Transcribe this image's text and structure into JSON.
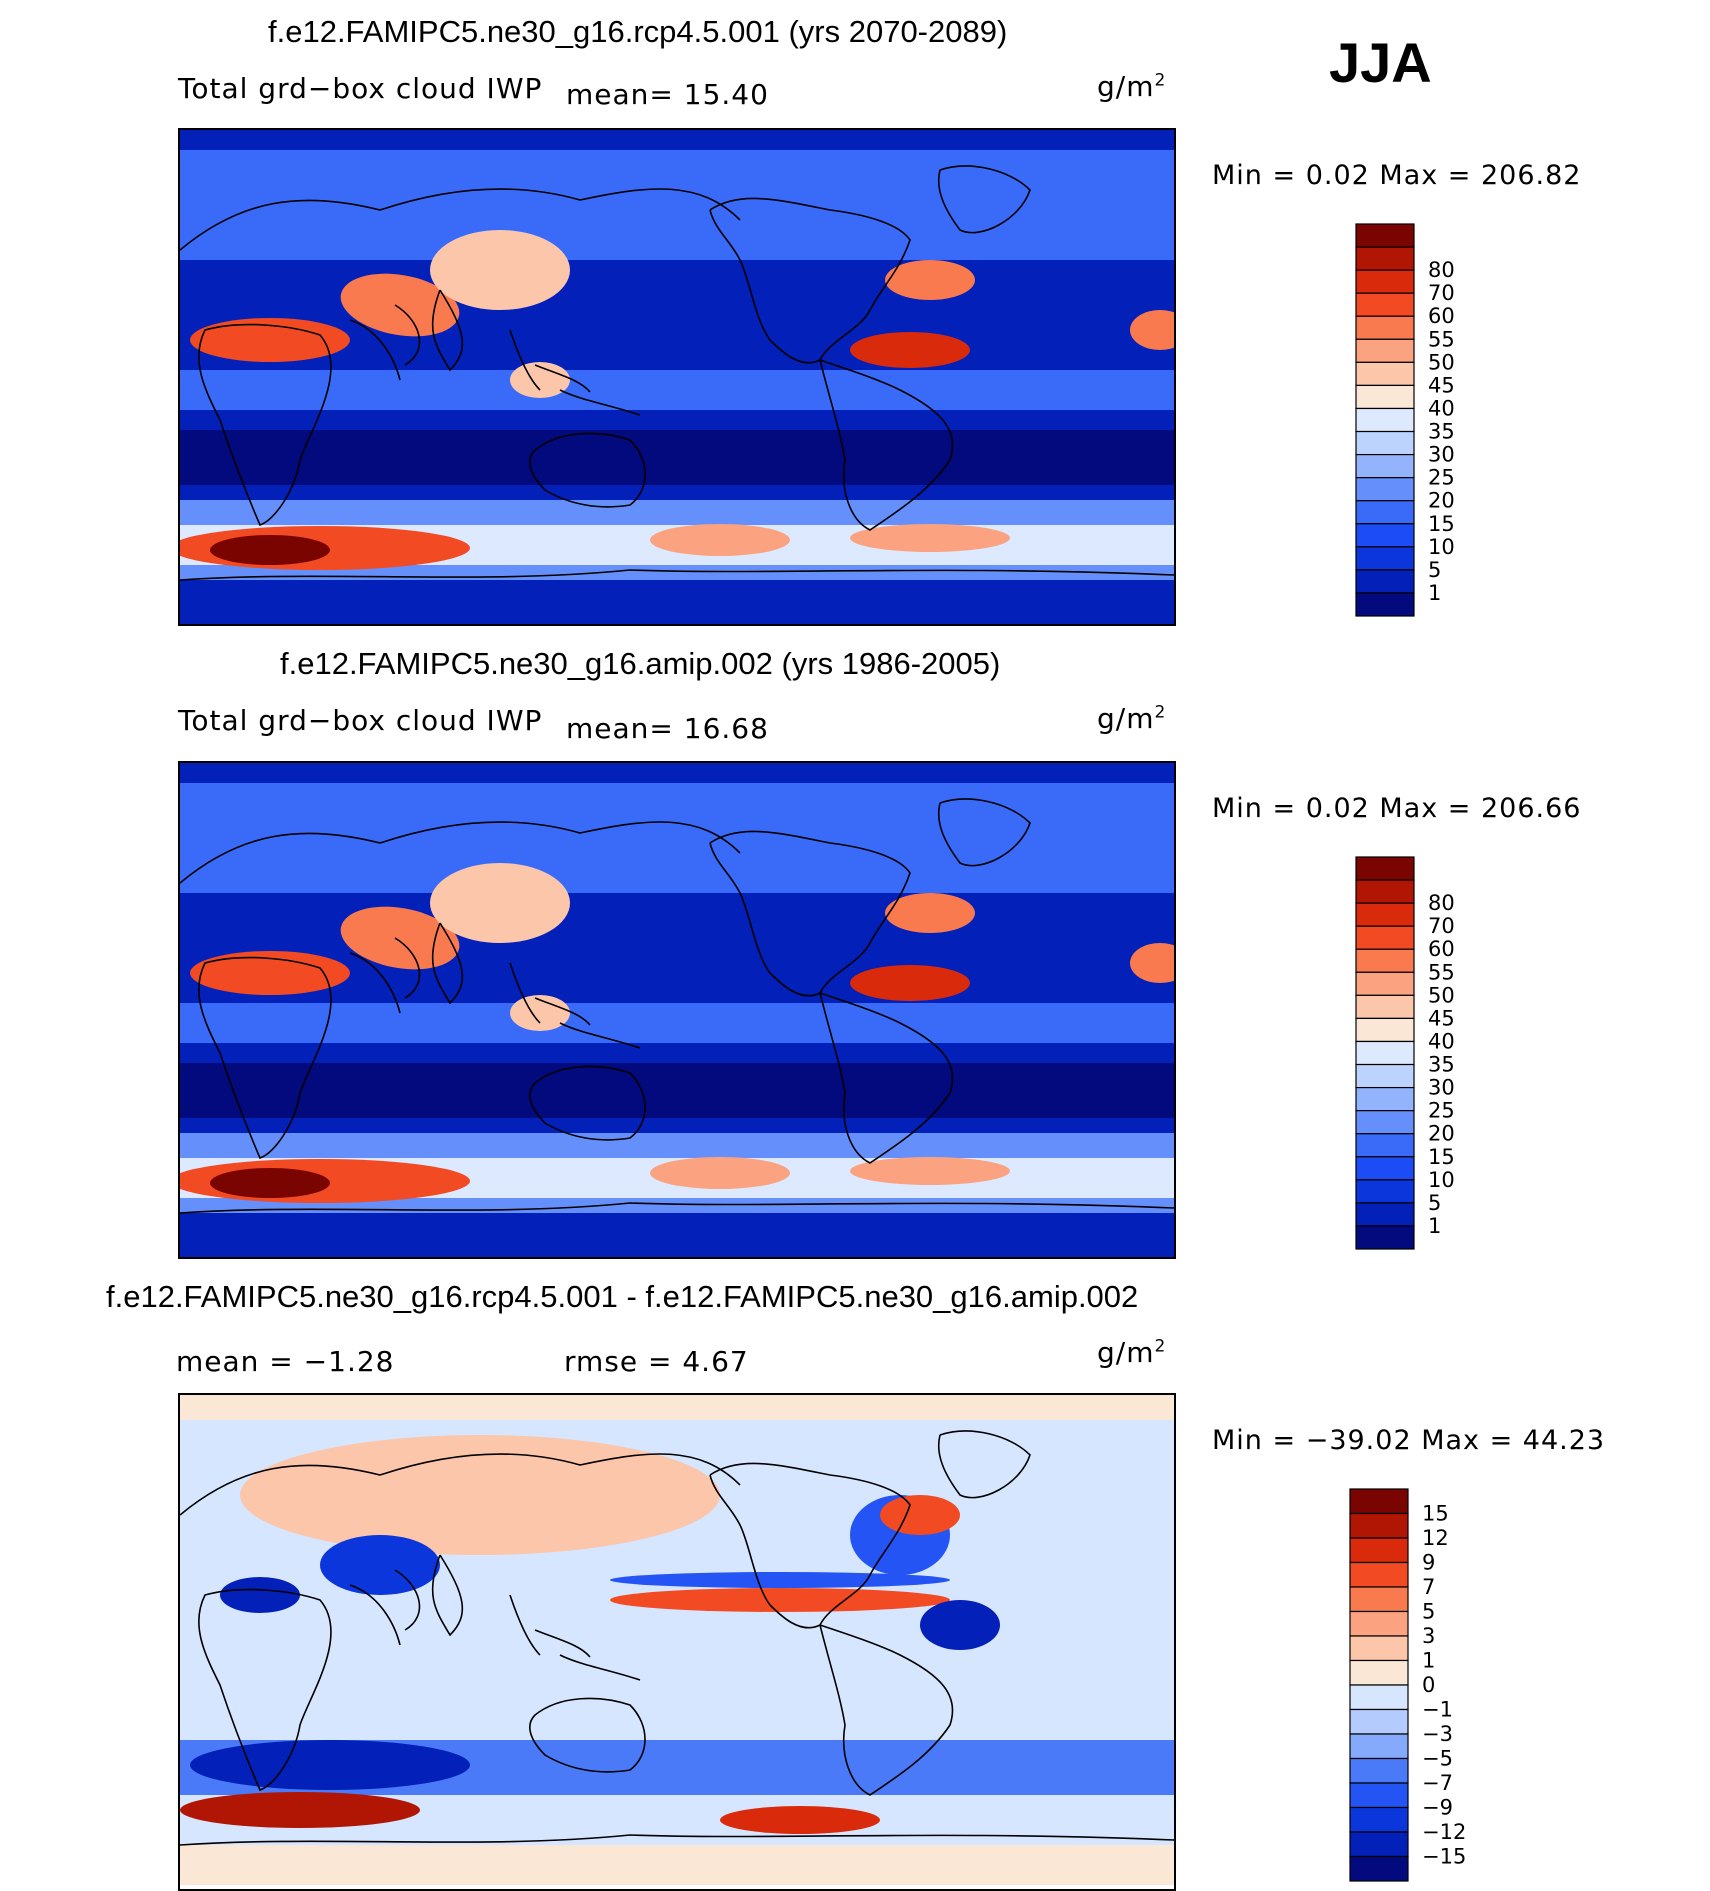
{
  "season": "JJA",
  "colors": {
    "abs_scale": [
      "#020a7e",
      "#0320b8",
      "#0a36dc",
      "#1c4cf5",
      "#3a6af8",
      "#6590fb",
      "#93b4fc",
      "#bcd3fe",
      "#dde9fe",
      "#fbe7d6",
      "#fcc6ab",
      "#fba380",
      "#fa7a50",
      "#f24a22",
      "#d92a0c",
      "#b11503",
      "#7a0400"
    ],
    "diff_scale": [
      "#020a7e",
      "#0320b8",
      "#0a36dc",
      "#2554f5",
      "#4a7af8",
      "#86aafb",
      "#b3ccfd",
      "#d6e6fe",
      "#fbe7d6",
      "#fcc6ab",
      "#fba380",
      "#fa7a50",
      "#f24a22",
      "#d92a0c",
      "#b11503",
      "#7a0400"
    ]
  },
  "chart_data": [
    {
      "type": "heatmap",
      "title": "f.e12.FAMIPC5.ne30_g16.rcp4.5.001 (yrs 2070-2089)",
      "variable": "Total grd−box cloud IWP",
      "mean_text": "mean=   15.40",
      "units": "g/m",
      "units_exp": "2",
      "min_max_text": "Min  =    0.02  Max  =  206.82",
      "levels": [
        "1",
        "5",
        "10",
        "15",
        "20",
        "25",
        "30",
        "35",
        "40",
        "45",
        "50",
        "55",
        "60",
        "70",
        "80"
      ]
    },
    {
      "type": "heatmap",
      "title": "f.e12.FAMIPC5.ne30_g16.amip.002 (yrs 1986-2005)",
      "variable": "Total grd−box cloud IWP",
      "mean_text": "mean=   16.68",
      "units": "g/m",
      "units_exp": "2",
      "min_max_text": "Min  =    0.02  Max  =  206.66",
      "levels": [
        "1",
        "5",
        "10",
        "15",
        "20",
        "25",
        "30",
        "35",
        "40",
        "45",
        "50",
        "55",
        "60",
        "70",
        "80"
      ]
    },
    {
      "type": "heatmap",
      "title": "f.e12.FAMIPC5.ne30_g16.rcp4.5.001 - f.e12.FAMIPC5.ne30_g16.amip.002",
      "mean_text": "mean  =   −1.28",
      "rmse_text": "rmse  =     4.67",
      "units": "g/m",
      "units_exp": "2",
      "min_max_text": "Min  = −39.02  Max  =   44.23",
      "levels": [
        "−15",
        "−12",
        "−9",
        "−7",
        "−5",
        "−3",
        "−1",
        "0",
        "1",
        "3",
        "5",
        "7",
        "9",
        "12",
        "15"
      ]
    }
  ]
}
